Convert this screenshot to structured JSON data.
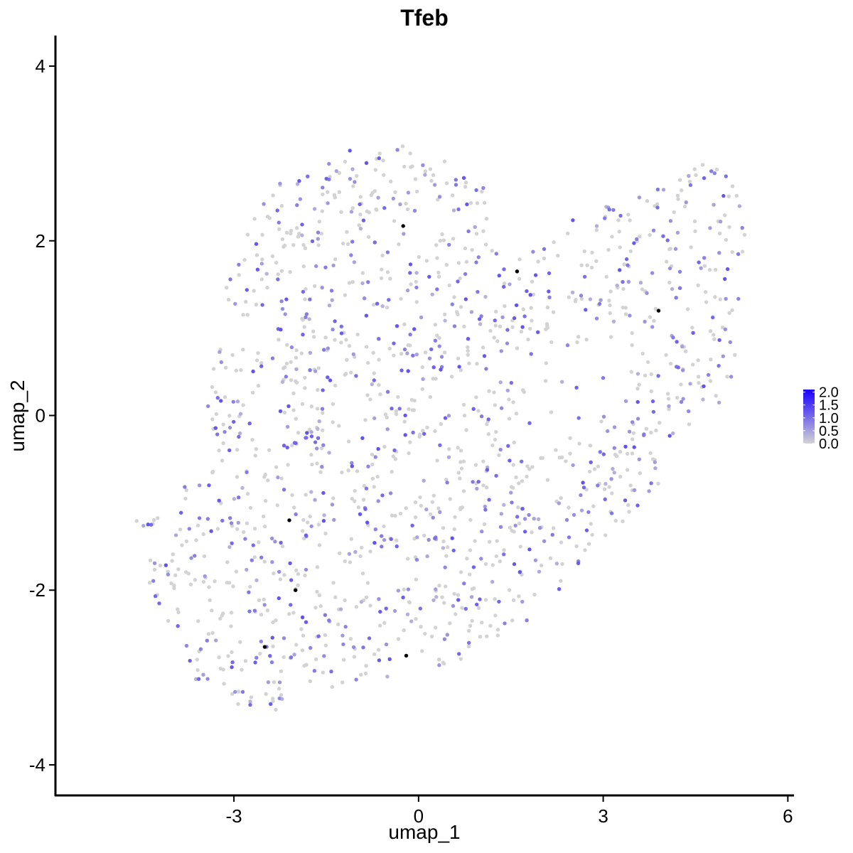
{
  "chart_data": {
    "type": "scatter",
    "title": "Tfeb",
    "xlabel": "umap_1",
    "ylabel": "umap_2",
    "xlim": [
      -5.9,
      6.1
    ],
    "ylim": [
      -4.35,
      4.35
    ],
    "x_ticks": [
      -3,
      0,
      3,
      6
    ],
    "x_tick_labels": [
      "-3",
      "0",
      "3",
      "6"
    ],
    "y_ticks": [
      4,
      2,
      0,
      -2,
      -4
    ],
    "y_tick_labels": [
      "4",
      "2",
      "0",
      "-2",
      "-4"
    ],
    "grid": false,
    "legend_position": "right",
    "color_scale": {
      "low_color": "#d3d3d3",
      "high_color": "#1a00ff",
      "min": 0.0,
      "max": 2.1,
      "breaks": [
        2.0,
        1.5,
        1.0,
        0.5,
        0.0
      ],
      "break_labels": [
        "2.0",
        "1.5",
        "1.0",
        "0.5",
        "0.0"
      ]
    },
    "highlighted_points": [
      {
        "x": 3.9,
        "y": 1.2,
        "value": 2.1
      },
      {
        "x": -0.2,
        "y": -2.75,
        "value": 1.9
      },
      {
        "x": -2.0,
        "y": -2.0,
        "value": 1.9
      },
      {
        "x": -0.25,
        "y": 2.17,
        "value": 1.6
      },
      {
        "x": -2.5,
        "y": -2.65,
        "value": 1.6
      },
      {
        "x": 1.6,
        "y": 1.65,
        "value": 1.5
      },
      {
        "x": -2.1,
        "y": -1.2,
        "value": 1.5
      }
    ],
    "point_cloud": {
      "n_points": 1500,
      "expressed_fraction": 0.42,
      "expression_range": [
        0.3,
        1.3
      ],
      "regions": [
        {
          "name": "left-lobe",
          "x_range": [
            -4.3,
            -0.3
          ],
          "y_range": [
            -3.5,
            0.5
          ]
        },
        {
          "name": "upper-left",
          "x_range": [
            -3.3,
            1.1
          ],
          "y_range": [
            -1.0,
            3.1
          ]
        },
        {
          "name": "middle-band",
          "x_range": [
            -1.0,
            3.2
          ],
          "y_range": [
            -3.0,
            1.0
          ]
        },
        {
          "name": "right-lobe",
          "x_range": [
            2.5,
            5.4
          ],
          "y_range": [
            -1.3,
            3.0
          ]
        }
      ]
    }
  }
}
